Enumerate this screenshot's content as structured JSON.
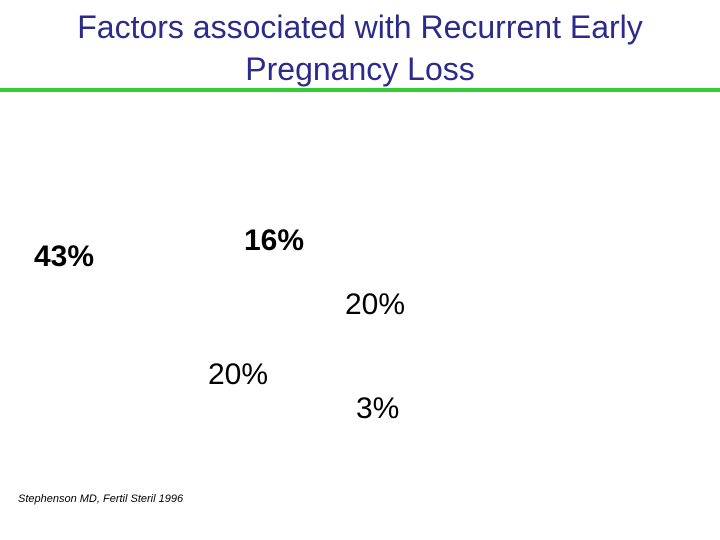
{
  "chart_data": {
    "type": "pie",
    "title_lines": [
      "Factors associated with Recurrent Early",
      "Pregnancy Loss"
    ],
    "slices": [
      {
        "label": "43%",
        "value": 43
      },
      {
        "label": "16%",
        "value": 16
      },
      {
        "label": "20%",
        "value": 20
      },
      {
        "label": "20%",
        "value": 20
      },
      {
        "label": "3%",
        "value": 3
      }
    ],
    "colors": {
      "title": "#2b2b8c",
      "rule": "#33cc33"
    }
  },
  "citation": "Stephenson MD, Fertil Steril 1996"
}
